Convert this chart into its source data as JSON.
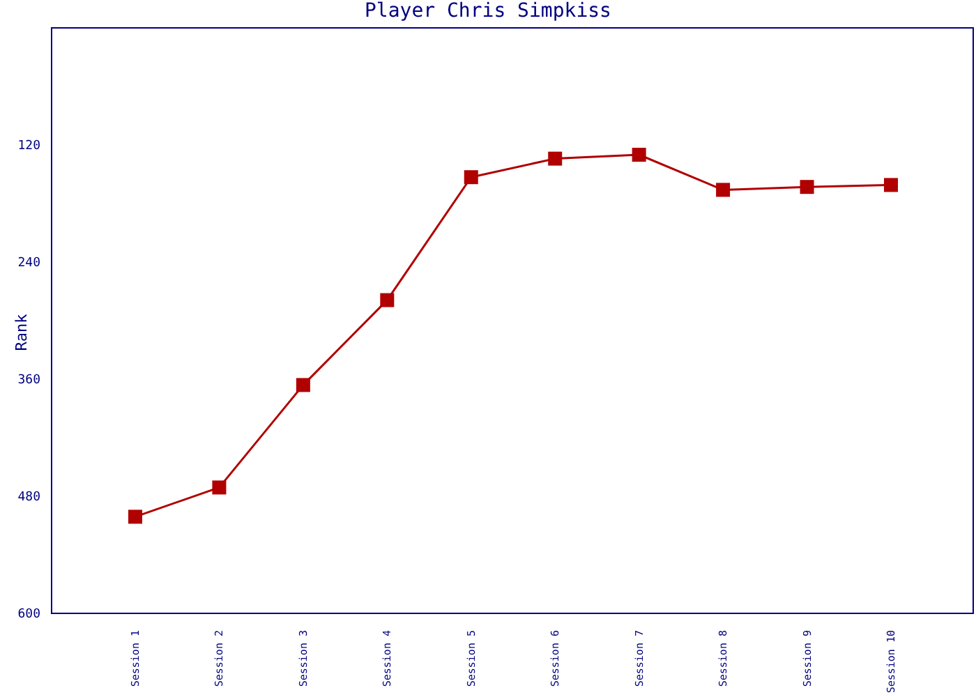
{
  "chart_data": {
    "type": "line",
    "title": "Player Chris Simpkiss",
    "ylabel": "Rank",
    "categories": [
      "Session 1",
      "Session 2",
      "Session 3",
      "Session 4",
      "Session 5",
      "Session 6",
      "Session 7",
      "Session 8",
      "Session 9",
      "Session 10"
    ],
    "series": [
      {
        "color": "#b00000",
        "values": [
          501,
          471,
          366,
          279,
          153,
          134,
          130,
          166,
          163,
          161
        ]
      }
    ],
    "ylim": [
      600,
      0
    ],
    "yticks": [
      120,
      240,
      360,
      480,
      600
    ],
    "grid": false,
    "legend": false,
    "marker": "square",
    "line_style": "solid"
  }
}
